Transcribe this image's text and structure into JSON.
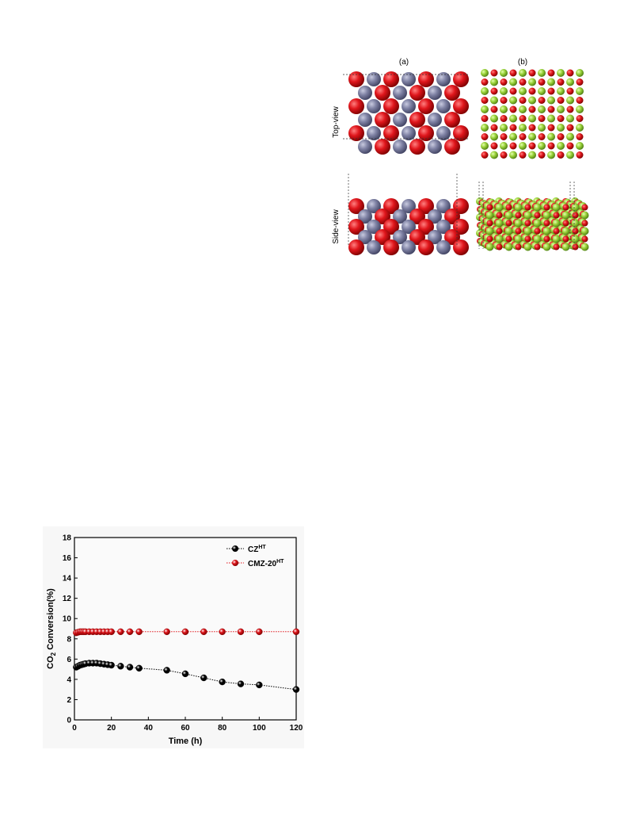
{
  "figure_top": {
    "panel_labels": [
      "(a)",
      "(b)"
    ],
    "row_labels": [
      "Top-view",
      "Side-view"
    ],
    "colors": {
      "oxygen": "#e0161c",
      "metal_a": "#7f82a4",
      "metal_b": "#9ad33a"
    }
  },
  "chart_data": {
    "type": "line",
    "xlabel": "Time (h)",
    "ylabel": "CO2 Conversion(%)",
    "ylabel_parts": {
      "main": "CO",
      "sub": "2",
      "rest": " Conversion(%)"
    },
    "xlim": [
      0,
      120
    ],
    "ylim": [
      0,
      18
    ],
    "xticks": [
      "0",
      "20",
      "40",
      "60",
      "80",
      "100",
      "120"
    ],
    "yticks": [
      "0",
      "2",
      "4",
      "6",
      "8",
      "10",
      "12",
      "14",
      "16",
      "18"
    ],
    "grid": false,
    "legend_position": "top-right",
    "series": [
      {
        "name": "CZHT",
        "name_parts": {
          "main": "CZ",
          "sup": "HT"
        },
        "color": "#000000",
        "x": [
          1,
          2,
          3,
          4,
          5,
          6,
          8,
          10,
          12,
          14,
          16,
          18,
          20,
          25,
          30,
          35,
          50,
          60,
          70,
          80,
          90,
          100,
          120
        ],
        "y": [
          5.2,
          5.3,
          5.4,
          5.45,
          5.5,
          5.55,
          5.6,
          5.6,
          5.6,
          5.55,
          5.5,
          5.45,
          5.4,
          5.3,
          5.2,
          5.1,
          4.9,
          4.55,
          4.15,
          3.75,
          3.55,
          3.45,
          3.0
        ]
      },
      {
        "name": "CMZ-20HT",
        "name_parts": {
          "main": "CMZ-20",
          "sup": "HT"
        },
        "color": "#e0161c",
        "x": [
          1,
          2,
          3,
          4,
          5,
          6,
          8,
          10,
          12,
          14,
          16,
          18,
          20,
          25,
          30,
          35,
          50,
          60,
          70,
          80,
          90,
          100,
          120
        ],
        "y": [
          8.6,
          8.65,
          8.7,
          8.7,
          8.7,
          8.7,
          8.7,
          8.7,
          8.7,
          8.7,
          8.7,
          8.7,
          8.7,
          8.7,
          8.7,
          8.7,
          8.7,
          8.7,
          8.7,
          8.7,
          8.7,
          8.7,
          8.7
        ]
      }
    ]
  }
}
